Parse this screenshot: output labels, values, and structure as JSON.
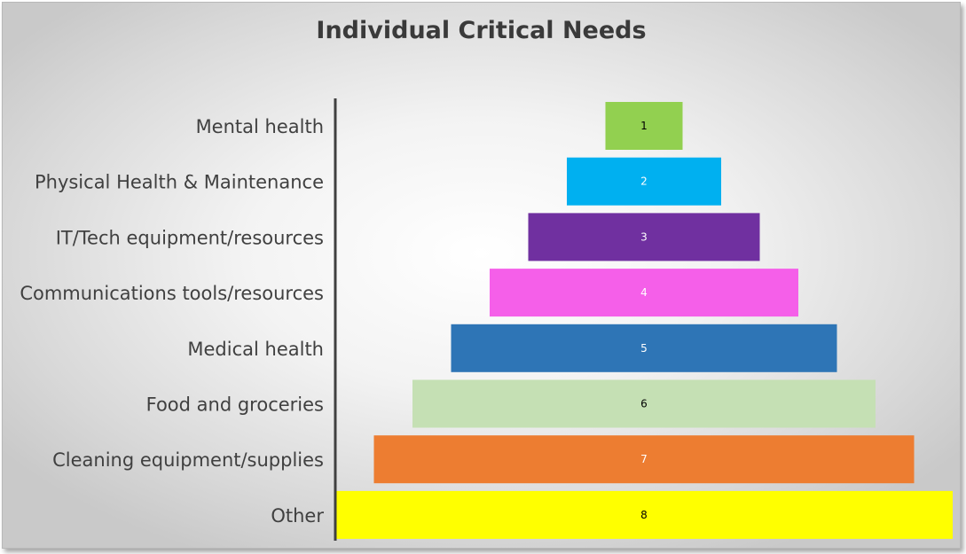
{
  "chart_data": {
    "type": "bar",
    "orientation": "horizontal",
    "style": "funnel",
    "title": "Individual Critical Needs",
    "xlabel": "",
    "ylabel": "",
    "grid": false,
    "categories": [
      "Mental health",
      "Physical Health & Maintenance",
      "IT/Tech equipment/resources",
      "Communications tools/resources",
      "Medical health",
      "Food and groceries",
      "Cleaning equipment/supplies",
      "Other"
    ],
    "values": [
      1,
      2,
      3,
      4,
      5,
      6,
      7,
      8
    ],
    "colors": [
      "#92d050",
      "#00b0f0",
      "#7030a0",
      "#f55fe9",
      "#2e75b6",
      "#c5e0b4",
      "#ed7d31",
      "#ffff00"
    ],
    "label_colors": [
      "#000000",
      "#ffffff",
      "#ffffff",
      "#ffffff",
      "#ffffff",
      "#000000",
      "#ffffff",
      "#000000"
    ]
  }
}
